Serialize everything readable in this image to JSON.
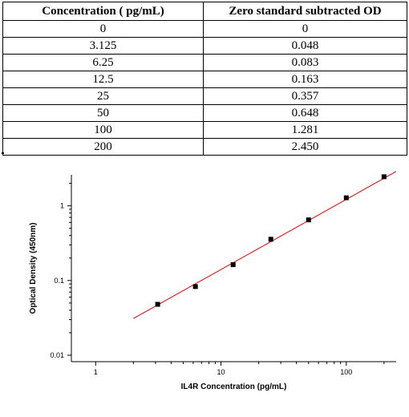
{
  "table": {
    "headers": [
      "Concentration ( pg/mL)",
      "Zero standard subtracted OD"
    ],
    "rows": [
      [
        "0",
        "0"
      ],
      [
        "3.125",
        "0.048"
      ],
      [
        "6.25",
        "0.083"
      ],
      [
        "12.5",
        "0.163"
      ],
      [
        "25",
        "0.357"
      ],
      [
        "50",
        "0.648"
      ],
      [
        "100",
        "1.281"
      ],
      [
        "200",
        "2.450"
      ]
    ]
  },
  "chart_data": {
    "type": "scatter",
    "title": "",
    "xlabel": "IL4R Concentration (pg/mL)",
    "ylabel": "Optical Density (450nm)",
    "xscale": "log",
    "yscale": "log",
    "xlim": [
      0.64,
      250
    ],
    "ylim": [
      0.0082,
      2.6
    ],
    "xticks": [
      1,
      10,
      100
    ],
    "xtick_labels": [
      "1",
      "10",
      "100"
    ],
    "yticks": [
      0.01,
      0.1,
      1
    ],
    "ytick_labels": [
      "0.01",
      "0.1",
      "1"
    ],
    "grid": false,
    "legend": "none",
    "points": [
      {
        "x": 3.125,
        "y": 0.048
      },
      {
        "x": 6.25,
        "y": 0.083
      },
      {
        "x": 12.5,
        "y": 0.163
      },
      {
        "x": 25,
        "y": 0.357
      },
      {
        "x": 50,
        "y": 0.648
      },
      {
        "x": 100,
        "y": 1.281
      },
      {
        "x": 200,
        "y": 2.45
      }
    ],
    "fit_line": {
      "x_start": 2,
      "x_end": 250,
      "y_start": 0.031,
      "y_end": 2.88
    },
    "marker_color": "#000000",
    "line_color": "#dd0000"
  }
}
